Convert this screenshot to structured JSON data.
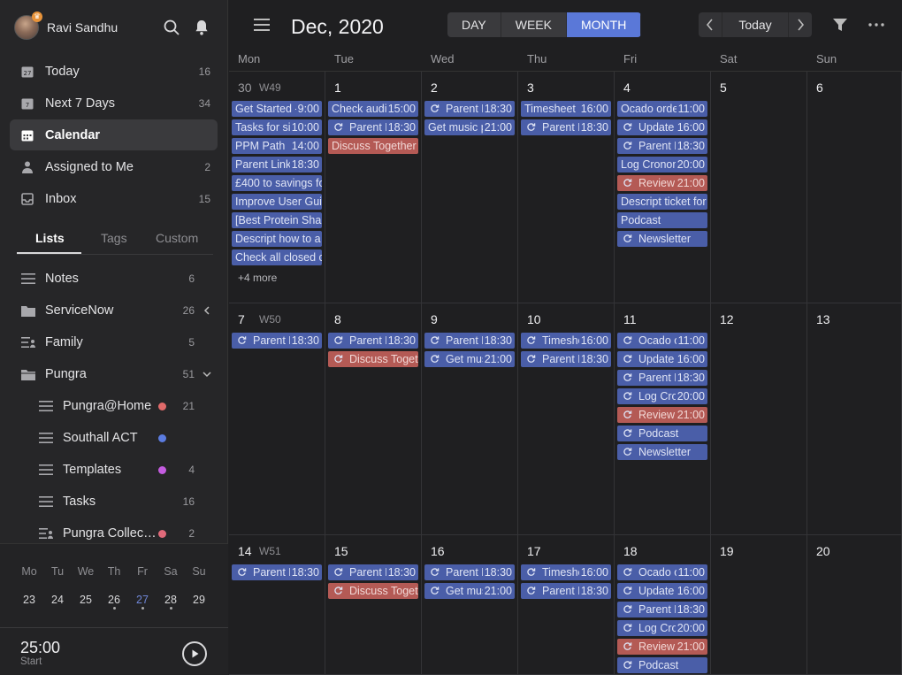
{
  "user": {
    "name": "Ravi Sandhu"
  },
  "nav": [
    {
      "label": "Today",
      "count": "16",
      "icon": "calendar-today-icon",
      "active": false
    },
    {
      "label": "Next 7 Days",
      "count": "34",
      "icon": "calendar-week-icon",
      "active": false
    },
    {
      "label": "Calendar",
      "count": "",
      "icon": "calendar-icon",
      "active": true
    },
    {
      "label": "Assigned to Me",
      "count": "2",
      "icon": "person-icon",
      "active": false
    },
    {
      "label": "Inbox",
      "count": "15",
      "icon": "inbox-icon",
      "active": false
    }
  ],
  "tabs": {
    "lists": "Lists",
    "tags": "Tags",
    "custom": "Custom"
  },
  "lists": [
    {
      "label": "Notes",
      "count": "6",
      "icon": "list-icon"
    },
    {
      "label": "ServiceNow",
      "count": "26",
      "icon": "folder-icon",
      "chevron": "left"
    },
    {
      "label": "Family",
      "count": "5",
      "icon": "shared-list-icon"
    },
    {
      "label": "Pungra",
      "count": "51",
      "icon": "folder-open-icon",
      "chevron": "down"
    },
    {
      "label": "Pungra@Home",
      "count": "21",
      "icon": "list-icon",
      "dot": "#e06a6a",
      "sub": true
    },
    {
      "label": "Southall ACT",
      "count": "",
      "icon": "list-icon",
      "dot": "#5b7ce0",
      "sub": true
    },
    {
      "label": "Templates",
      "count": "4",
      "icon": "list-icon",
      "dot": "#c45ce0",
      "sub": true
    },
    {
      "label": "Tasks",
      "count": "16",
      "icon": "list-icon",
      "sub": true
    },
    {
      "label": "Pungra Collective …",
      "count": "2",
      "icon": "shared-list-icon",
      "dot": "#e06a7a",
      "sub": true
    }
  ],
  "mini_calendar": {
    "headers": [
      "Mo",
      "Tu",
      "We",
      "Th",
      "Fr",
      "Sa",
      "Su"
    ],
    "days": [
      "23",
      "24",
      "25",
      "26",
      "27",
      "28",
      "29"
    ],
    "today": "27",
    "dotted": [
      "26",
      "27",
      "28"
    ]
  },
  "pomodoro": {
    "time": "25:00",
    "label": "Start"
  },
  "header": {
    "title": "Dec, 2020",
    "views": [
      "DAY",
      "WEEK",
      "MONTH"
    ],
    "active_view": "MONTH",
    "today_label": "Today"
  },
  "weekdays": [
    "Mon",
    "Tue",
    "Wed",
    "Thu",
    "Fri",
    "Sat",
    "Sun"
  ],
  "weeks": [
    {
      "label": "W49",
      "days": [
        {
          "num": "30",
          "dim": true,
          "events": [
            {
              "t": "Get Started -",
              "time": "9:00",
              "c": "blue"
            },
            {
              "t": "Tasks for sir",
              "time": "10:00",
              "c": "blue"
            },
            {
              "t": "PPM Path",
              "time": "14:00",
              "c": "blue"
            },
            {
              "t": "Parent Link",
              "time": "18:30",
              "c": "blue"
            },
            {
              "t": "£400 to savings fo",
              "c": "blue"
            },
            {
              "t": "Improve User Guid",
              "c": "blue"
            },
            {
              "t": "[Best Protein Shak",
              "c": "blue"
            },
            {
              "t": "Descript how to a",
              "c": "blue"
            },
            {
              "t": "Check all closed c",
              "c": "blue"
            }
          ],
          "more": "+4 more"
        },
        {
          "num": "1",
          "events": [
            {
              "t": "Check audio",
              "time": "15:00",
              "c": "blue"
            },
            {
              "t": "Parent Li",
              "time": "18:30",
              "c": "blue",
              "rep": true
            },
            {
              "t": "Discuss Together",
              "c": "red"
            }
          ]
        },
        {
          "num": "2",
          "events": [
            {
              "t": "Parent Li",
              "time": "18:30",
              "c": "blue",
              "rep": true
            },
            {
              "t": "Get music p",
              "time": "21:00",
              "c": "blue"
            }
          ]
        },
        {
          "num": "3",
          "events": [
            {
              "t": "Timesheet",
              "time": "16:00",
              "c": "blue"
            },
            {
              "t": "Parent Li",
              "time": "18:30",
              "c": "blue",
              "rep": true
            }
          ]
        },
        {
          "num": "4",
          "events": [
            {
              "t": "Ocado orde",
              "time": "11:00",
              "c": "blue"
            },
            {
              "t": "Update (",
              "time": "16:00",
              "c": "blue",
              "rep": true
            },
            {
              "t": "Parent Li",
              "time": "18:30",
              "c": "blue",
              "rep": true
            },
            {
              "t": "Log Cronom",
              "time": "20:00",
              "c": "blue"
            },
            {
              "t": "Review p",
              "time": "21:00",
              "c": "red",
              "rep": true
            },
            {
              "t": "Descript ticket for",
              "c": "blue"
            },
            {
              "t": "Podcast",
              "c": "blue"
            },
            {
              "t": "Newsletter",
              "c": "blue",
              "rep": true
            }
          ]
        },
        {
          "num": "5",
          "events": []
        },
        {
          "num": "6",
          "events": []
        }
      ]
    },
    {
      "label": "W50",
      "days": [
        {
          "num": "7",
          "events": [
            {
              "t": "Parent Li",
              "time": "18:30",
              "c": "blue",
              "rep": true
            }
          ]
        },
        {
          "num": "8",
          "events": [
            {
              "t": "Parent Li",
              "time": "18:30",
              "c": "blue",
              "rep": true
            },
            {
              "t": "Discuss Togetl",
              "c": "red",
              "rep": true
            }
          ]
        },
        {
          "num": "9",
          "events": [
            {
              "t": "Parent Li",
              "time": "18:30",
              "c": "blue",
              "rep": true
            },
            {
              "t": "Get mus",
              "time": "21:00",
              "c": "blue",
              "rep": true
            }
          ]
        },
        {
          "num": "10",
          "events": [
            {
              "t": "Timeshe",
              "time": "16:00",
              "c": "blue",
              "rep": true
            },
            {
              "t": "Parent Li",
              "time": "18:30",
              "c": "blue",
              "rep": true
            }
          ]
        },
        {
          "num": "11",
          "events": [
            {
              "t": "Ocado o",
              "time": "11:00",
              "c": "blue",
              "rep": true
            },
            {
              "t": "Update (",
              "time": "16:00",
              "c": "blue",
              "rep": true
            },
            {
              "t": "Parent Li",
              "time": "18:30",
              "c": "blue",
              "rep": true
            },
            {
              "t": "Log Cror",
              "time": "20:00",
              "c": "blue",
              "rep": true
            },
            {
              "t": "Review p",
              "time": "21:00",
              "c": "red",
              "rep": true
            },
            {
              "t": "Podcast",
              "c": "blue",
              "rep": true
            },
            {
              "t": "Newsletter",
              "c": "blue",
              "rep": true
            }
          ]
        },
        {
          "num": "12",
          "events": []
        },
        {
          "num": "13",
          "events": []
        }
      ]
    },
    {
      "label": "W51",
      "days": [
        {
          "num": "14",
          "events": [
            {
              "t": "Parent Li",
              "time": "18:30",
              "c": "blue",
              "rep": true
            }
          ]
        },
        {
          "num": "15",
          "events": [
            {
              "t": "Parent Li",
              "time": "18:30",
              "c": "blue",
              "rep": true
            },
            {
              "t": "Discuss Togetl",
              "c": "red",
              "rep": true
            }
          ]
        },
        {
          "num": "16",
          "events": [
            {
              "t": "Parent Li",
              "time": "18:30",
              "c": "blue",
              "rep": true
            },
            {
              "t": "Get mus",
              "time": "21:00",
              "c": "blue",
              "rep": true
            }
          ]
        },
        {
          "num": "17",
          "events": [
            {
              "t": "Timeshe",
              "time": "16:00",
              "c": "blue",
              "rep": true
            },
            {
              "t": "Parent Li",
              "time": "18:30",
              "c": "blue",
              "rep": true
            }
          ]
        },
        {
          "num": "18",
          "events": [
            {
              "t": "Ocado o",
              "time": "11:00",
              "c": "blue",
              "rep": true
            },
            {
              "t": "Update (",
              "time": "16:00",
              "c": "blue",
              "rep": true
            },
            {
              "t": "Parent Li",
              "time": "18:30",
              "c": "blue",
              "rep": true
            },
            {
              "t": "Log Cror",
              "time": "20:00",
              "c": "blue",
              "rep": true
            },
            {
              "t": "Review p",
              "time": "21:00",
              "c": "red",
              "rep": true
            },
            {
              "t": "Podcast",
              "c": "blue",
              "rep": true
            }
          ]
        },
        {
          "num": "19",
          "events": []
        },
        {
          "num": "20",
          "events": []
        }
      ]
    }
  ]
}
